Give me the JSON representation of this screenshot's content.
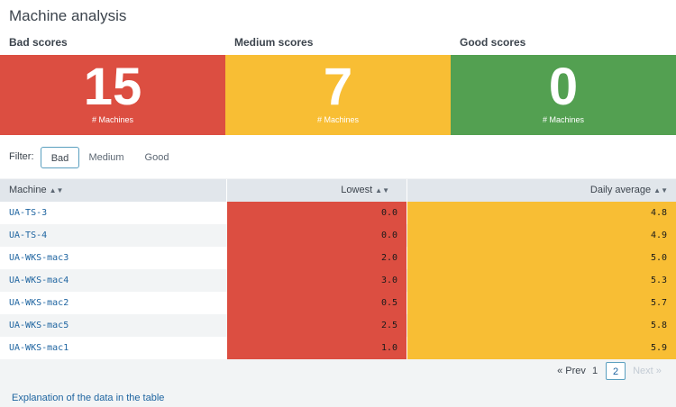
{
  "page": {
    "title": "Machine analysis"
  },
  "scores": [
    {
      "label": "Bad scores",
      "value": "15",
      "unit": "# Machines",
      "color": "#dc4e41"
    },
    {
      "label": "Medium scores",
      "value": "7",
      "unit": "# Machines",
      "color": "#f8be34"
    },
    {
      "label": "Good scores",
      "value": "0",
      "unit": "# Machines",
      "color": "#53a051"
    }
  ],
  "filter": {
    "label": "Filter:",
    "options": [
      "Bad",
      "Medium",
      "Good"
    ],
    "selected": "Bad"
  },
  "table": {
    "columns": [
      "Machine",
      "Lowest",
      "Daily average"
    ],
    "sort_icon": "sort-icon",
    "rows": [
      {
        "machine": "UA-TS-3",
        "lowest": "0.0",
        "daily_average": "4.8"
      },
      {
        "machine": "UA-TS-4",
        "lowest": "0.0",
        "daily_average": "4.9"
      },
      {
        "machine": "UA-WKS-mac3",
        "lowest": "2.0",
        "daily_average": "5.0"
      },
      {
        "machine": "UA-WKS-mac4",
        "lowest": "3.0",
        "daily_average": "5.3"
      },
      {
        "machine": "UA-WKS-mac2",
        "lowest": "0.5",
        "daily_average": "5.7"
      },
      {
        "machine": "UA-WKS-mac5",
        "lowest": "2.5",
        "daily_average": "5.8"
      },
      {
        "machine": "UA-WKS-mac1",
        "lowest": "1.0",
        "daily_average": "5.9"
      }
    ]
  },
  "pagination": {
    "prev": "« Prev",
    "pages": [
      "1",
      "2"
    ],
    "current": "2",
    "next": "Next »"
  },
  "footer": {
    "link": "Explanation of the data in the table"
  }
}
